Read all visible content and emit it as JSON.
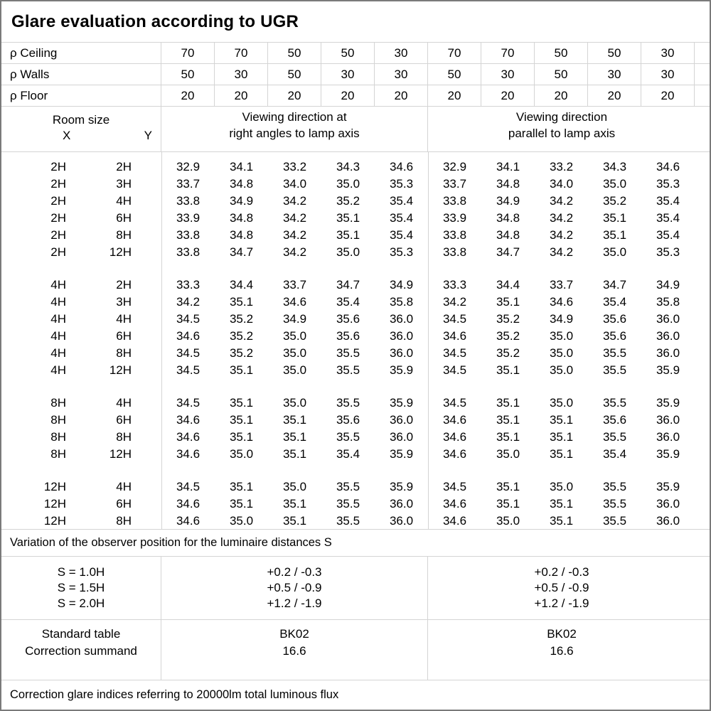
{
  "title": "Glare evaluation according to UGR",
  "colors": {
    "background": "#ffffff",
    "text": "#000000",
    "grid_line": "#d4d4d4",
    "outer_border": "#7a7a7a"
  },
  "reflectances": {
    "rows": [
      {
        "label": "ρ Ceiling",
        "values": [
          "70",
          "70",
          "50",
          "50",
          "30",
          "70",
          "70",
          "50",
          "50",
          "30"
        ]
      },
      {
        "label": "ρ Walls",
        "values": [
          "50",
          "30",
          "50",
          "30",
          "30",
          "50",
          "30",
          "50",
          "30",
          "30"
        ]
      },
      {
        "label": "ρ Floor",
        "values": [
          "20",
          "20",
          "20",
          "20",
          "20",
          "20",
          "20",
          "20",
          "20",
          "20"
        ]
      }
    ]
  },
  "header": {
    "room_size": "Room size",
    "x": "X",
    "y": "Y",
    "right_angles": [
      "Viewing direction at",
      "right angles to lamp axis"
    ],
    "parallel": [
      "Viewing direction",
      "parallel to lamp axis"
    ]
  },
  "ugr_table": {
    "blocks": [
      {
        "rows": [
          {
            "x": "2H",
            "y": "2H",
            "right_angles": [
              "32.9",
              "34.1",
              "33.2",
              "34.3",
              "34.6"
            ],
            "parallel": [
              "32.9",
              "34.1",
              "33.2",
              "34.3",
              "34.6"
            ]
          },
          {
            "x": "2H",
            "y": "3H",
            "right_angles": [
              "33.7",
              "34.8",
              "34.0",
              "35.0",
              "35.3"
            ],
            "parallel": [
              "33.7",
              "34.8",
              "34.0",
              "35.0",
              "35.3"
            ]
          },
          {
            "x": "2H",
            "y": "4H",
            "right_angles": [
              "33.8",
              "34.9",
              "34.2",
              "35.2",
              "35.4"
            ],
            "parallel": [
              "33.8",
              "34.9",
              "34.2",
              "35.2",
              "35.4"
            ]
          },
          {
            "x": "2H",
            "y": "6H",
            "right_angles": [
              "33.9",
              "34.8",
              "34.2",
              "35.1",
              "35.4"
            ],
            "parallel": [
              "33.9",
              "34.8",
              "34.2",
              "35.1",
              "35.4"
            ]
          },
          {
            "x": "2H",
            "y": "8H",
            "right_angles": [
              "33.8",
              "34.8",
              "34.2",
              "35.1",
              "35.4"
            ],
            "parallel": [
              "33.8",
              "34.8",
              "34.2",
              "35.1",
              "35.4"
            ]
          },
          {
            "x": "2H",
            "y": "12H",
            "right_angles": [
              "33.8",
              "34.7",
              "34.2",
              "35.0",
              "35.3"
            ],
            "parallel": [
              "33.8",
              "34.7",
              "34.2",
              "35.0",
              "35.3"
            ]
          }
        ]
      },
      {
        "rows": [
          {
            "x": "4H",
            "y": "2H",
            "right_angles": [
              "33.3",
              "34.4",
              "33.7",
              "34.7",
              "34.9"
            ],
            "parallel": [
              "33.3",
              "34.4",
              "33.7",
              "34.7",
              "34.9"
            ]
          },
          {
            "x": "4H",
            "y": "3H",
            "right_angles": [
              "34.2",
              "35.1",
              "34.6",
              "35.4",
              "35.8"
            ],
            "parallel": [
              "34.2",
              "35.1",
              "34.6",
              "35.4",
              "35.8"
            ]
          },
          {
            "x": "4H",
            "y": "4H",
            "right_angles": [
              "34.5",
              "35.2",
              "34.9",
              "35.6",
              "36.0"
            ],
            "parallel": [
              "34.5",
              "35.2",
              "34.9",
              "35.6",
              "36.0"
            ]
          },
          {
            "x": "4H",
            "y": "6H",
            "right_angles": [
              "34.6",
              "35.2",
              "35.0",
              "35.6",
              "36.0"
            ],
            "parallel": [
              "34.6",
              "35.2",
              "35.0",
              "35.6",
              "36.0"
            ]
          },
          {
            "x": "4H",
            "y": "8H",
            "right_angles": [
              "34.5",
              "35.2",
              "35.0",
              "35.5",
              "36.0"
            ],
            "parallel": [
              "34.5",
              "35.2",
              "35.0",
              "35.5",
              "36.0"
            ]
          },
          {
            "x": "4H",
            "y": "12H",
            "right_angles": [
              "34.5",
              "35.1",
              "35.0",
              "35.5",
              "35.9"
            ],
            "parallel": [
              "34.5",
              "35.1",
              "35.0",
              "35.5",
              "35.9"
            ]
          }
        ]
      },
      {
        "rows": [
          {
            "x": "8H",
            "y": "4H",
            "right_angles": [
              "34.5",
              "35.1",
              "35.0",
              "35.5",
              "35.9"
            ],
            "parallel": [
              "34.5",
              "35.1",
              "35.0",
              "35.5",
              "35.9"
            ]
          },
          {
            "x": "8H",
            "y": "6H",
            "right_angles": [
              "34.6",
              "35.1",
              "35.1",
              "35.6",
              "36.0"
            ],
            "parallel": [
              "34.6",
              "35.1",
              "35.1",
              "35.6",
              "36.0"
            ]
          },
          {
            "x": "8H",
            "y": "8H",
            "right_angles": [
              "34.6",
              "35.1",
              "35.1",
              "35.5",
              "36.0"
            ],
            "parallel": [
              "34.6",
              "35.1",
              "35.1",
              "35.5",
              "36.0"
            ]
          },
          {
            "x": "8H",
            "y": "12H",
            "right_angles": [
              "34.6",
              "35.0",
              "35.1",
              "35.4",
              "35.9"
            ],
            "parallel": [
              "34.6",
              "35.0",
              "35.1",
              "35.4",
              "35.9"
            ]
          }
        ]
      },
      {
        "rows": [
          {
            "x": "12H",
            "y": "4H",
            "right_angles": [
              "34.5",
              "35.1",
              "35.0",
              "35.5",
              "35.9"
            ],
            "parallel": [
              "34.5",
              "35.1",
              "35.0",
              "35.5",
              "35.9"
            ]
          },
          {
            "x": "12H",
            "y": "6H",
            "right_angles": [
              "34.6",
              "35.1",
              "35.1",
              "35.5",
              "36.0"
            ],
            "parallel": [
              "34.6",
              "35.1",
              "35.1",
              "35.5",
              "36.0"
            ]
          },
          {
            "x": "12H",
            "y": "8H",
            "right_angles": [
              "34.6",
              "35.0",
              "35.1",
              "35.5",
              "36.0"
            ],
            "parallel": [
              "34.6",
              "35.0",
              "35.1",
              "35.5",
              "36.0"
            ]
          }
        ]
      }
    ]
  },
  "variation_note": "Variation of the observer position for the luminaire distances S",
  "spacing_correction": {
    "rows": [
      {
        "label": "S = 1.0H",
        "right_angles": "+0.2 / -0.3",
        "parallel": "+0.2 / -0.3"
      },
      {
        "label": "S = 1.5H",
        "right_angles": "+0.5 / -0.9",
        "parallel": "+0.5 / -0.9"
      },
      {
        "label": "S = 2.0H",
        "right_angles": "+1.2 / -1.9",
        "parallel": "+1.2 / -1.9"
      }
    ]
  },
  "standard": {
    "rows": [
      {
        "label": "Standard table",
        "right_angles": "BK02",
        "parallel": "BK02"
      },
      {
        "label": "Correction summand",
        "right_angles": "16.6",
        "parallel": "16.6"
      }
    ]
  },
  "footer_note": "Correction glare indices referring to 20000lm total luminous flux"
}
